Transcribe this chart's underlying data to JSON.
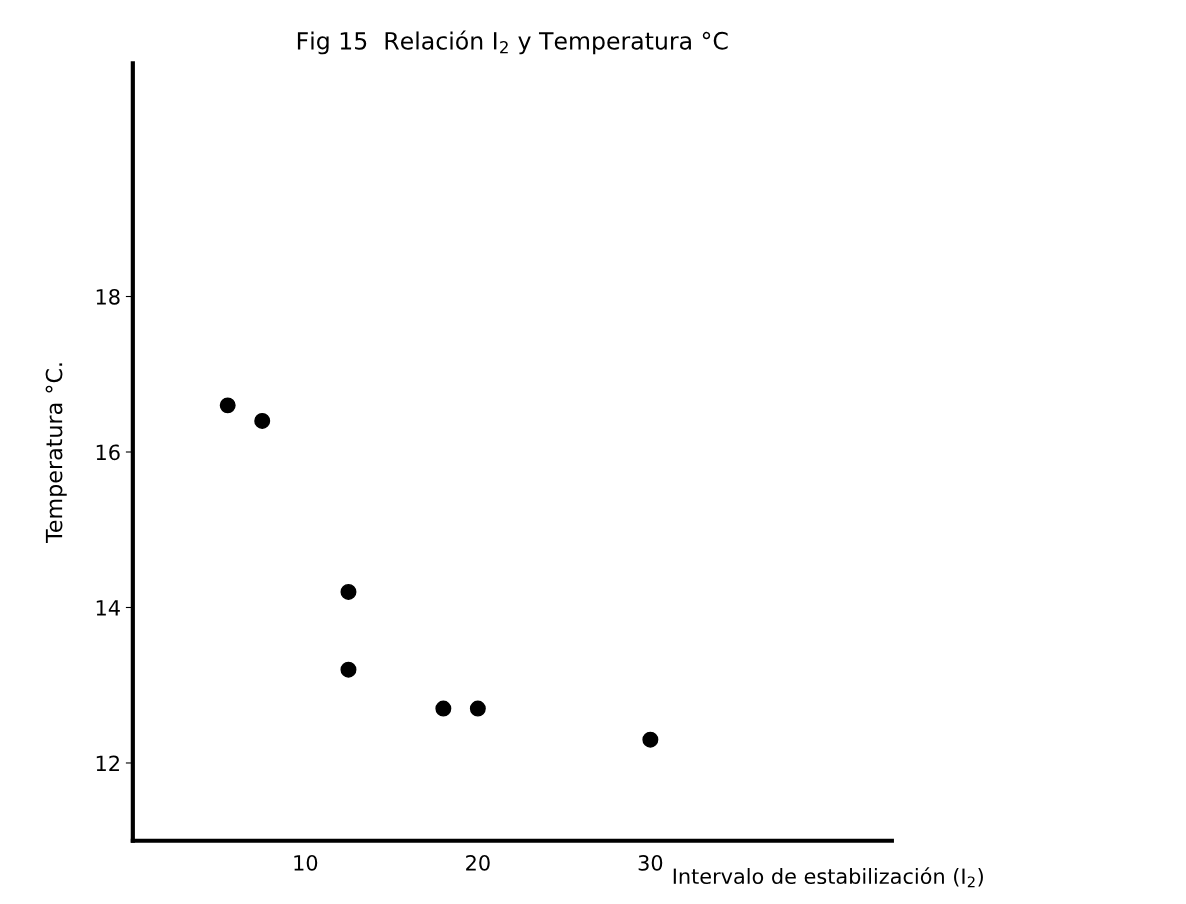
{
  "chart_data": {
    "type": "scatter",
    "title": "Fig 15  Relación I$_{2}$ y Temperatura °C",
    "xlabel": "Intervalo de estabilización (I$_{2}$)",
    "ylabel": "Temperatura °C.",
    "x": [
      5.5,
      7.5,
      12.5,
      12.5,
      18,
      20,
      30
    ],
    "series": [
      {
        "color": "#000000",
        "values": [
          16.6,
          16.4,
          14.2,
          13.2,
          12.7,
          12.7,
          12.3
        ]
      }
    ],
    "xlim": [
      0,
      44
    ],
    "ylim": [
      11,
      21
    ],
    "xticks": [
      10,
      20,
      30
    ],
    "yticks": [
      12,
      14,
      16,
      18
    ],
    "grid": false,
    "legend": false,
    "marker": "circle"
  }
}
